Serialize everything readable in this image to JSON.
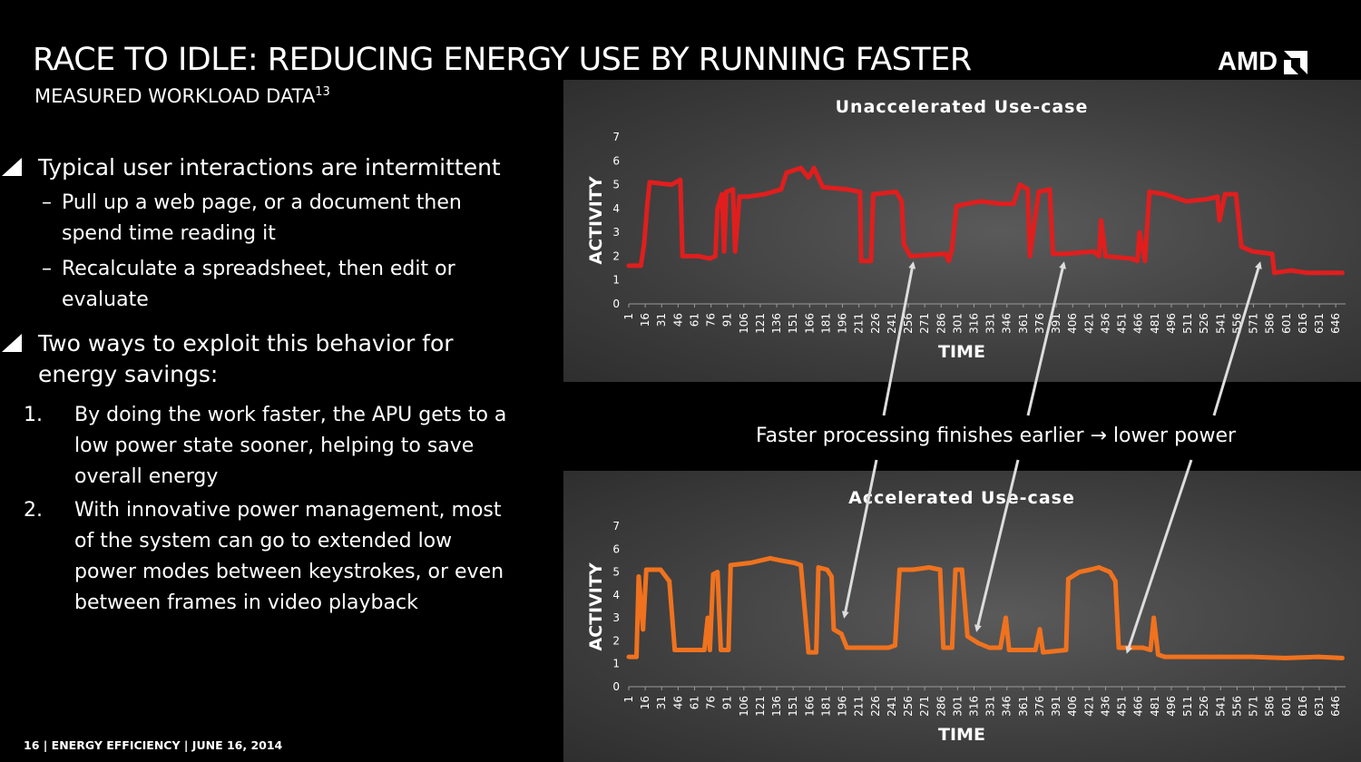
{
  "slide": {
    "title": "RACE TO IDLE: REDUCING ENERGY USE BY RUNNING FASTER",
    "subtitle": "MEASURED WORKLOAD DATA",
    "subtitle_sup": "13",
    "logo": "AMD",
    "bullets": [
      {
        "text": "Typical user interactions are intermittent",
        "subs": [
          "Pull up a web page, or a document then",
          "spend time reading it",
          "Recalculate a spreadsheet, then edit or",
          "evaluate"
        ]
      },
      {
        "text_lines": [
          "Two ways to exploit this behavior for",
          "energy savings:"
        ],
        "numbered": [
          {
            "n": "1.",
            "lines": [
              "By doing the work faster, the APU gets to a",
              "low power state sooner, helping to save",
              "overall energy"
            ]
          },
          {
            "n": "2.",
            "lines": [
              "With innovative power management, most",
              "of the system can go to extended low",
              "power modes between keystrokes, or even",
              "between frames in video playback"
            ]
          }
        ]
      }
    ],
    "annotation": "Faster processing finishes earlier → lower power",
    "footer": "16  |  ENERGY EFFICIENCY  |  JUNE 16, 2014",
    "colors": {
      "unaccelerated": "#e01e1e",
      "accelerated": "#f0721e",
      "panel": "#474747"
    }
  },
  "chart_data": [
    {
      "type": "line",
      "title": "Unaccelerated Use-case",
      "xlabel": "TIME",
      "ylabel": "ACTIVITY",
      "ylim": [
        0,
        7
      ],
      "yticks": [
        0,
        1,
        2,
        3,
        4,
        5,
        6,
        7
      ],
      "xticks": [
        1,
        16,
        31,
        46,
        61,
        76,
        91,
        106,
        121,
        136,
        151,
        166,
        181,
        196,
        211,
        226,
        241,
        256,
        271,
        286,
        301,
        316,
        331,
        346,
        361,
        376,
        391,
        406,
        421,
        436,
        451,
        466,
        481,
        496,
        511,
        526,
        541,
        556,
        571,
        586,
        601,
        616,
        631,
        646
      ],
      "xlim": [
        1,
        655
      ],
      "grid": false,
      "series": [
        {
          "color": "#e01e1e",
          "points": [
            [
              1,
              1.6
            ],
            [
              12,
              1.6
            ],
            [
              15,
              2.5
            ],
            [
              18,
              4.2
            ],
            [
              20,
              5.1
            ],
            [
              40,
              5.0
            ],
            [
              48,
              5.2
            ],
            [
              50,
              2.0
            ],
            [
              65,
              2.0
            ],
            [
              75,
              1.9
            ],
            [
              80,
              2.0
            ],
            [
              82,
              4.0
            ],
            [
              86,
              4.6
            ],
            [
              88,
              2.2
            ],
            [
              90,
              4.7
            ],
            [
              96,
              4.8
            ],
            [
              98,
              2.2
            ],
            [
              102,
              4.5
            ],
            [
              110,
              4.5
            ],
            [
              125,
              4.6
            ],
            [
              140,
              4.8
            ],
            [
              145,
              5.5
            ],
            [
              158,
              5.7
            ],
            [
              165,
              5.3
            ],
            [
              170,
              5.7
            ],
            [
              178,
              4.9
            ],
            [
              200,
              4.8
            ],
            [
              212,
              4.7
            ],
            [
              213,
              1.8
            ],
            [
              222,
              1.8
            ],
            [
              224,
              4.6
            ],
            [
              245,
              4.7
            ],
            [
              250,
              4.3
            ],
            [
              252,
              2.5
            ],
            [
              258,
              2.0
            ],
            [
              290,
              2.1
            ],
            [
              293,
              1.8
            ],
            [
              296,
              2.3
            ],
            [
              300,
              4.1
            ],
            [
              310,
              4.2
            ],
            [
              322,
              4.3
            ],
            [
              340,
              4.2
            ],
            [
              352,
              4.2
            ],
            [
              358,
              5.0
            ],
            [
              365,
              4.8
            ],
            [
              367,
              2.0
            ],
            [
              375,
              4.7
            ],
            [
              385,
              4.8
            ],
            [
              388,
              2.1
            ],
            [
              400,
              2.1
            ],
            [
              425,
              2.2
            ],
            [
              430,
              2.0
            ],
            [
              432,
              3.5
            ],
            [
              436,
              2.0
            ],
            [
              460,
              1.9
            ],
            [
              465,
              1.8
            ],
            [
              467,
              3.0
            ],
            [
              472,
              1.8
            ],
            [
              476,
              4.7
            ],
            [
              490,
              4.6
            ],
            [
              510,
              4.3
            ],
            [
              530,
              4.4
            ],
            [
              538,
              4.5
            ],
            [
              540,
              3.5
            ],
            [
              545,
              4.6
            ],
            [
              555,
              4.6
            ],
            [
              560,
              2.4
            ],
            [
              570,
              2.2
            ],
            [
              588,
              2.1
            ],
            [
              590,
              1.3
            ],
            [
              605,
              1.4
            ],
            [
              620,
              1.3
            ],
            [
              635,
              1.3
            ],
            [
              652,
              1.3
            ]
          ]
        }
      ]
    },
    {
      "type": "line",
      "title": "Accelerated Use-case",
      "xlabel": "TIME",
      "ylabel": "ACTIVITY",
      "ylim": [
        0,
        7
      ],
      "yticks": [
        0,
        1,
        2,
        3,
        4,
        5,
        6,
        7
      ],
      "xticks": [
        1,
        16,
        31,
        46,
        61,
        76,
        91,
        106,
        121,
        136,
        151,
        166,
        181,
        196,
        211,
        226,
        241,
        256,
        271,
        286,
        301,
        316,
        331,
        346,
        361,
        376,
        391,
        406,
        421,
        436,
        451,
        466,
        481,
        496,
        511,
        526,
        541,
        556,
        571,
        586,
        601,
        616,
        631,
        646
      ],
      "xlim": [
        1,
        655
      ],
      "grid": false,
      "series": [
        {
          "color": "#f0721e",
          "points": [
            [
              1,
              1.3
            ],
            [
              8,
              1.3
            ],
            [
              10,
              4.8
            ],
            [
              14,
              2.5
            ],
            [
              17,
              5.1
            ],
            [
              30,
              5.1
            ],
            [
              38,
              4.6
            ],
            [
              43,
              1.6
            ],
            [
              62,
              1.6
            ],
            [
              70,
              1.6
            ],
            [
              73,
              3.0
            ],
            [
              75,
              1.6
            ],
            [
              78,
              4.9
            ],
            [
              82,
              5.0
            ],
            [
              85,
              1.6
            ],
            [
              92,
              1.6
            ],
            [
              94,
              5.3
            ],
            [
              112,
              5.4
            ],
            [
              130,
              5.6
            ],
            [
              140,
              5.5
            ],
            [
              152,
              5.4
            ],
            [
              158,
              5.3
            ],
            [
              165,
              1.5
            ],
            [
              172,
              1.5
            ],
            [
              174,
              5.2
            ],
            [
              182,
              5.1
            ],
            [
              186,
              4.8
            ],
            [
              188,
              2.5
            ],
            [
              195,
              2.3
            ],
            [
              200,
              1.7
            ],
            [
              238,
              1.7
            ],
            [
              244,
              1.8
            ],
            [
              248,
              5.1
            ],
            [
              260,
              5.1
            ],
            [
              275,
              5.2
            ],
            [
              285,
              5.1
            ],
            [
              288,
              1.7
            ],
            [
              296,
              1.7
            ],
            [
              299,
              5.1
            ],
            [
              305,
              5.1
            ],
            [
              310,
              2.2
            ],
            [
              320,
              1.9
            ],
            [
              330,
              1.7
            ],
            [
              340,
              1.7
            ],
            [
              345,
              3.0
            ],
            [
              348,
              1.6
            ],
            [
              372,
              1.6
            ],
            [
              376,
              2.5
            ],
            [
              379,
              1.5
            ],
            [
              400,
              1.6
            ],
            [
              402,
              4.7
            ],
            [
              412,
              5.0
            ],
            [
              422,
              5.1
            ],
            [
              430,
              5.2
            ],
            [
              440,
              5.0
            ],
            [
              445,
              4.6
            ],
            [
              448,
              1.7
            ],
            [
              470,
              1.7
            ],
            [
              477,
              1.6
            ],
            [
              480,
              3.0
            ],
            [
              484,
              1.4
            ],
            [
              490,
              1.3
            ],
            [
              510,
              1.3
            ],
            [
              540,
              1.3
            ],
            [
              570,
              1.3
            ],
            [
              600,
              1.25
            ],
            [
              630,
              1.3
            ],
            [
              652,
              1.25
            ]
          ]
        }
      ]
    }
  ]
}
